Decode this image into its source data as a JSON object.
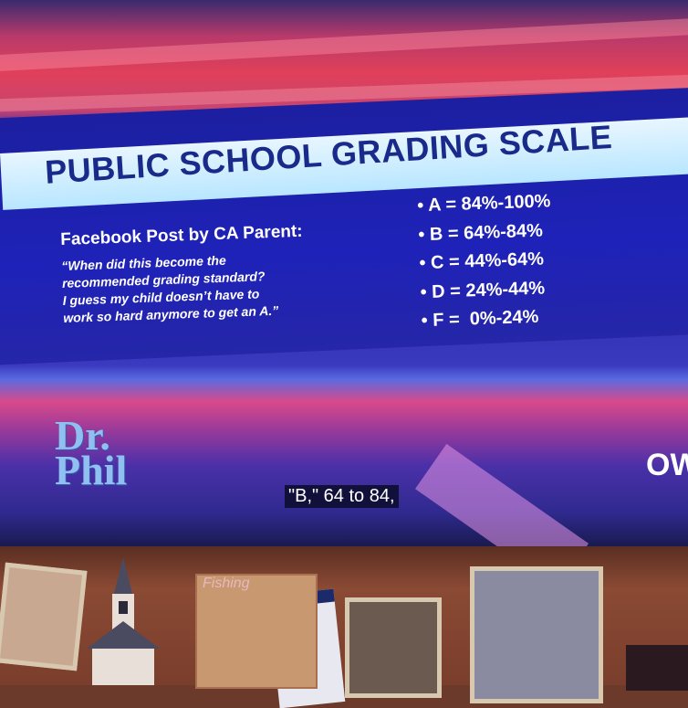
{
  "graphic": {
    "title": "PUBLIC SCHOOL GRADING SCALE",
    "subtitle": "Facebook Post by CA Parent:",
    "quote_lines": [
      "“When did this become the",
      "recommended grading standard?",
      "I guess my child doesn’t have to",
      "work so hard anymore to get an A.”"
    ],
    "grades": [
      "• A = 84%-100%",
      "• B = 64%-84%",
      "• C = 44%-64%",
      "• D = 24%-44%",
      "• F =  0%-24%"
    ]
  },
  "show": {
    "logo_line1": "Dr.",
    "logo_line2": "Phil",
    "caption": "\"B,\" 64 to 84,",
    "edge_text": "OW"
  },
  "shelf": {
    "frame_text": "Fishing"
  },
  "colors": {
    "title_bar": "#c8ecff",
    "title_text": "#1a2a8a",
    "panel_blue": "#1e22b8",
    "logo_blue": "#8fc0f0"
  }
}
